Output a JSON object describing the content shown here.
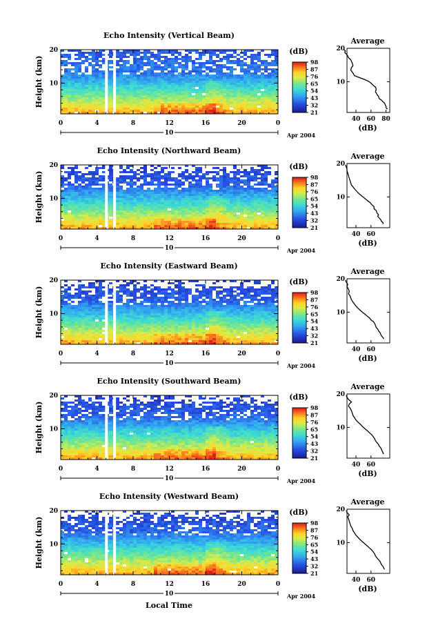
{
  "chart_data": [
    {
      "type": "heatmap",
      "title": "Echo Intensity (Vertical Beam)",
      "ylabel": "Height (km)",
      "y_ticks": [
        "20",
        "10"
      ],
      "x_ticks": [
        "0",
        "4",
        "8",
        "12",
        "16",
        "20",
        "0"
      ],
      "date_label": "10",
      "date_suffix": "Apr 2004",
      "colorbar": {
        "unit": "(dB)",
        "levels": [
          "98",
          "87",
          "76",
          "65",
          "54",
          "43",
          "32",
          "21"
        ]
      },
      "profile": {
        "title": "Average",
        "xlabel": "(dB)",
        "x_ticks": [
          "40",
          "60",
          "80"
        ],
        "y_ticks": [
          "20",
          "10"
        ],
        "points": [
          [
            24,
            19.6
          ],
          [
            26,
            19.2
          ],
          [
            25,
            18.8
          ],
          [
            27,
            18.3
          ],
          [
            29,
            17.7
          ],
          [
            30,
            17.2
          ],
          [
            33,
            16.6
          ],
          [
            35,
            15.6
          ],
          [
            36,
            14.8
          ],
          [
            34,
            14.2
          ],
          [
            33,
            13.5
          ],
          [
            36,
            12.6
          ],
          [
            38,
            11.8
          ],
          [
            45,
            11.2
          ],
          [
            52,
            10.6
          ],
          [
            57,
            10.1
          ],
          [
            60,
            9.6
          ],
          [
            63,
            8.9
          ],
          [
            66,
            8.4
          ],
          [
            67,
            7.8
          ],
          [
            66,
            7.0
          ],
          [
            68,
            6.2
          ],
          [
            70,
            5.6
          ],
          [
            71,
            4.9
          ],
          [
            74,
            4.5
          ],
          [
            76,
            4.0
          ],
          [
            78,
            3.6
          ],
          [
            79,
            3.1
          ],
          [
            80,
            2.6
          ],
          [
            80,
            2.2
          ],
          [
            82,
            1.8
          ]
        ]
      }
    },
    {
      "type": "heatmap",
      "title": "Echo Intensity (Northward Beam)",
      "ylabel": "Height (km)",
      "y_ticks": [
        "20",
        "10"
      ],
      "x_ticks": [
        "0",
        "4",
        "8",
        "12",
        "16",
        "20",
        "0"
      ],
      "date_label": "10",
      "date_suffix": "Apr 2004",
      "colorbar": {
        "unit": "(dB)",
        "levels": [
          "98",
          "87",
          "76",
          "65",
          "54",
          "43",
          "32",
          "21"
        ]
      },
      "profile": {
        "title": "Average",
        "xlabel": "(dB)",
        "x_ticks": [
          "40",
          "60"
        ],
        "y_ticks": [
          "20",
          "10"
        ],
        "points": [
          [
            26,
            19.6
          ],
          [
            27,
            19.0
          ],
          [
            28,
            18.4
          ],
          [
            28,
            17.8
          ],
          [
            29,
            17.2
          ],
          [
            30,
            16.4
          ],
          [
            31,
            15.6
          ],
          [
            32,
            14.9
          ],
          [
            33,
            14.2
          ],
          [
            34,
            13.6
          ],
          [
            36,
            13.0
          ],
          [
            38,
            12.4
          ],
          [
            41,
            11.7
          ],
          [
            44,
            11.0
          ],
          [
            47,
            10.4
          ],
          [
            50,
            9.9
          ],
          [
            53,
            9.3
          ],
          [
            56,
            8.8
          ],
          [
            59,
            8.3
          ],
          [
            61,
            7.7
          ],
          [
            64,
            7.1
          ],
          [
            64,
            6.5
          ],
          [
            67,
            5.9
          ],
          [
            68,
            5.2
          ],
          [
            70,
            4.7
          ],
          [
            69,
            4.2
          ],
          [
            71,
            3.7
          ],
          [
            73,
            3.2
          ],
          [
            74,
            2.7
          ],
          [
            76,
            2.3
          ],
          [
            76,
            1.9
          ]
        ]
      }
    },
    {
      "type": "heatmap",
      "title": "Echo Intensity (Eastward Beam)",
      "ylabel": "Height (km)",
      "y_ticks": [
        "20",
        "10"
      ],
      "x_ticks": [
        "0",
        "4",
        "8",
        "12",
        "16",
        "20",
        "0"
      ],
      "date_label": "10",
      "date_suffix": "Apr 2004",
      "colorbar": {
        "unit": "(dB)",
        "levels": [
          "98",
          "87",
          "76",
          "65",
          "54",
          "43",
          "32",
          "21"
        ]
      },
      "profile": {
        "title": "Average",
        "xlabel": "(dB)",
        "x_ticks": [
          "40",
          "60"
        ],
        "y_ticks": [
          "20",
          "10"
        ],
        "points": [
          [
            26,
            19.6
          ],
          [
            27,
            19.0
          ],
          [
            29,
            18.3
          ],
          [
            28,
            17.6
          ],
          [
            30,
            16.9
          ],
          [
            31,
            16.2
          ],
          [
            30,
            15.5
          ],
          [
            32,
            14.9
          ],
          [
            33,
            14.3
          ],
          [
            34,
            13.7
          ],
          [
            36,
            13.0
          ],
          [
            38,
            12.4
          ],
          [
            40,
            11.8
          ],
          [
            43,
            11.1
          ],
          [
            46,
            10.5
          ],
          [
            49,
            9.9
          ],
          [
            52,
            9.4
          ],
          [
            55,
            8.8
          ],
          [
            58,
            8.3
          ],
          [
            60,
            7.7
          ],
          [
            63,
            7.2
          ],
          [
            65,
            6.6
          ],
          [
            66,
            6.0
          ],
          [
            67,
            5.4
          ],
          [
            69,
            4.9
          ],
          [
            70,
            4.4
          ],
          [
            72,
            3.9
          ],
          [
            73,
            3.4
          ],
          [
            74,
            2.9
          ],
          [
            76,
            2.4
          ],
          [
            77,
            2.0
          ]
        ]
      }
    },
    {
      "type": "heatmap",
      "title": "Echo Intensity (Southward Beam)",
      "ylabel": "Height (km)",
      "y_ticks": [
        "20",
        "10"
      ],
      "x_ticks": [
        "0",
        "4",
        "8",
        "12",
        "16",
        "20",
        "0"
      ],
      "date_label": "10",
      "date_suffix": "Apr 2004",
      "colorbar": {
        "unit": "(dB)",
        "levels": [
          "98",
          "87",
          "76",
          "65",
          "54",
          "43",
          "32",
          "21"
        ]
      },
      "profile": {
        "title": "Average",
        "xlabel": "(dB)",
        "x_ticks": [
          "40",
          "60"
        ],
        "y_ticks": [
          "20",
          "10"
        ],
        "points": [
          [
            27,
            19.6
          ],
          [
            28,
            19.0
          ],
          [
            30,
            18.4
          ],
          [
            34,
            17.6
          ],
          [
            31,
            17.0
          ],
          [
            30,
            16.4
          ],
          [
            32,
            15.8
          ],
          [
            34,
            15.0
          ],
          [
            35,
            14.3
          ],
          [
            36,
            13.6
          ],
          [
            38,
            12.9
          ],
          [
            40,
            12.2
          ],
          [
            43,
            11.5
          ],
          [
            46,
            10.9
          ],
          [
            49,
            10.2
          ],
          [
            52,
            9.6
          ],
          [
            55,
            9.0
          ],
          [
            58,
            8.4
          ],
          [
            61,
            7.8
          ],
          [
            63,
            7.2
          ],
          [
            65,
            6.6
          ],
          [
            66,
            6.0
          ],
          [
            68,
            5.4
          ],
          [
            70,
            4.9
          ],
          [
            71,
            4.4
          ],
          [
            73,
            3.9
          ],
          [
            74,
            3.4
          ],
          [
            75,
            2.9
          ],
          [
            76,
            2.4
          ],
          [
            77,
            2.0
          ]
        ]
      }
    },
    {
      "type": "heatmap",
      "title": "Echo Intensity (Westward Beam)",
      "ylabel": "Height (km)",
      "y_ticks": [
        "20",
        "10"
      ],
      "x_ticks": [
        "0",
        "4",
        "8",
        "12",
        "16",
        "20",
        "0"
      ],
      "date_label": "10",
      "date_suffix": "Apr 2004",
      "xlabel": "Local Time",
      "colorbar": {
        "unit": "(dB)",
        "levels": [
          "98",
          "87",
          "76",
          "65",
          "54",
          "43",
          "32",
          "21"
        ]
      },
      "profile": {
        "title": "Average",
        "xlabel": "(dB)",
        "x_ticks": [
          "40",
          "60"
        ],
        "y_ticks": [
          "20",
          "10"
        ],
        "points": [
          [
            27,
            19.6
          ],
          [
            28,
            19.0
          ],
          [
            31,
            18.3
          ],
          [
            29,
            17.7
          ],
          [
            30,
            17.1
          ],
          [
            31,
            16.4
          ],
          [
            32,
            15.7
          ],
          [
            33,
            15.0
          ],
          [
            35,
            14.3
          ],
          [
            36,
            13.6
          ],
          [
            38,
            12.9
          ],
          [
            40,
            12.2
          ],
          [
            43,
            11.5
          ],
          [
            46,
            10.8
          ],
          [
            49,
            10.2
          ],
          [
            52,
            9.6
          ],
          [
            55,
            9.0
          ],
          [
            58,
            8.4
          ],
          [
            61,
            7.8
          ],
          [
            63,
            7.2
          ],
          [
            65,
            6.6
          ],
          [
            66,
            6.0
          ],
          [
            68,
            5.4
          ],
          [
            70,
            4.9
          ],
          [
            72,
            4.4
          ],
          [
            73,
            3.9
          ],
          [
            74,
            3.4
          ],
          [
            76,
            2.9
          ],
          [
            77,
            2.4
          ],
          [
            78,
            2.0
          ]
        ]
      }
    }
  ]
}
